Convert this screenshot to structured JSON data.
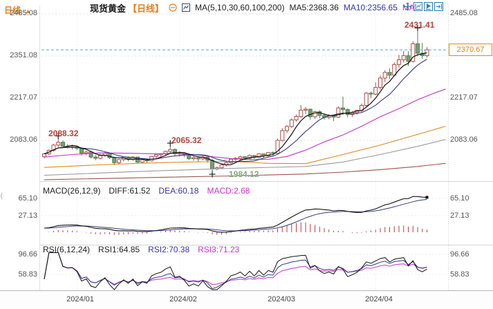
{
  "header": {
    "instrument": "现货黄金",
    "period": "【日线】",
    "ma_settings": "MA(5,10,30,60,100,200)",
    "ma5": "MA5:2368.36",
    "ma10": "MA10:2356.65",
    "ma_more": "MA"
  },
  "toolbar": {
    "icons": [
      "move-icon",
      "axis-scale-icon",
      "autoplay-icon",
      "pan-right-icon"
    ]
  },
  "price_tag": "2370.67",
  "annotations": {
    "high1": "2088.32",
    "high2": "2065.32",
    "low1": "1984.12",
    "high3": "2431.41"
  },
  "macd_panel": {
    "title": "MACD(26,12,9)",
    "diff": "DIFF:61.52",
    "dea": "DEA:60.18",
    "macd": "MACD:2.68"
  },
  "rsi_panel": {
    "title": "RSI(6,12,24)",
    "rsi1": "RSI1:64.85",
    "rsi2": "RSI2:70.38",
    "rsi3": "RSI3:71.23"
  },
  "bottom_bar": {
    "period": "日线",
    "arrow": "▲"
  },
  "icons": {
    "pane_handle": "⟨"
  },
  "axes": {
    "main_left": [
      "2485.08",
      "2351.08",
      "2217.07",
      "2083.06"
    ],
    "main_right": [
      "2485.08",
      "2217.07",
      "2083.06"
    ],
    "macd": [
      "65.10",
      "27.13"
    ],
    "rsi": [
      "96.66",
      "58.83"
    ],
    "dates": [
      "2024/01",
      "2024/02",
      "2024/03",
      "2024/04"
    ]
  },
  "colors": {
    "up": "#ab4e44",
    "down_fill": "#74a074",
    "down_stroke": "#537f51",
    "ma5": "#111111",
    "ma10": "#333a80",
    "ma30": "#c433c4",
    "ma60": "#d98a20",
    "ma100": "#9a9a9a",
    "ma200": "#9e544a",
    "hist": "#b04040",
    "diff": "#111111",
    "dea": "#333a80",
    "rsi1": "#111111",
    "rsi2": "#333a80",
    "rsi3": "#cc44cc",
    "price_line": "#55a7cc",
    "accent_orange": "#e0821a",
    "grid": "#e0e0e0",
    "axis_text": "#555555",
    "ann_high": "#b5433c",
    "ann_low": "#84a884",
    "icon_blue": "#2e7fb5"
  },
  "chart_data": {
    "type": "candlestick",
    "period": "daily",
    "ohlc_format": [
      "open",
      "high",
      "low",
      "close"
    ],
    "y_axis": {
      "main_gridline_prices": [
        2485.08,
        2351.08,
        2217.07,
        2083.06
      ],
      "macd_gridline_values": [
        65.1,
        27.13
      ],
      "rsi_gridline_values": [
        96.66,
        58.83
      ]
    },
    "x_axis": {
      "labels": [
        "2024/01",
        "2024/02",
        "2024/03",
        "2024/04"
      ],
      "month_start_indices": [
        7,
        29,
        50,
        71
      ]
    },
    "current_price": 2370.67,
    "indicator_values": {
      "ma5": 2368.36,
      "ma10": 2356.65,
      "diff": 61.52,
      "dea": 60.18,
      "macd": 2.68,
      "rsi1": 64.85,
      "rsi2": 70.38,
      "rsi3": 71.23
    },
    "extreme_annotations": [
      {
        "label": "2088.32",
        "index": 3,
        "side": "above"
      },
      {
        "label": "2065.32",
        "index": 27,
        "side": "above"
      },
      {
        "label": "1984.12",
        "index": 36,
        "side": "below"
      },
      {
        "label": "2431.41",
        "index": 80,
        "side": "above"
      }
    ],
    "candles": [
      [
        2031,
        2043,
        2026,
        2040
      ],
      [
        2040,
        2054,
        2036,
        2051
      ],
      [
        2051,
        2072,
        2048,
        2068
      ],
      [
        2068,
        2088.32,
        2062,
        2077
      ],
      [
        2077,
        2083,
        2058,
        2064
      ],
      [
        2064,
        2071,
        2057,
        2062
      ],
      [
        2062,
        2069,
        2054,
        2063
      ],
      [
        2063,
        2066,
        2052,
        2058
      ],
      [
        2058,
        2062,
        2034,
        2042
      ],
      [
        2042,
        2050,
        2036,
        2046
      ],
      [
        2046,
        2047,
        2026,
        2030
      ],
      [
        2030,
        2036,
        2020,
        2026
      ],
      [
        2026,
        2040,
        2022,
        2035
      ],
      [
        2035,
        2046,
        2030,
        2042
      ],
      [
        2042,
        2044,
        2024,
        2028
      ],
      [
        2028,
        2031,
        2004,
        2012
      ],
      [
        2012,
        2025,
        2008,
        2022
      ],
      [
        2022,
        2032,
        2016,
        2030
      ],
      [
        2030,
        2032,
        2016,
        2022
      ],
      [
        2022,
        2033,
        2018,
        2030
      ],
      [
        2030,
        2031,
        2010,
        2014
      ],
      [
        2014,
        2025,
        2010,
        2021
      ],
      [
        2021,
        2026,
        2012,
        2018
      ],
      [
        2018,
        2034,
        2016,
        2032
      ],
      [
        2032,
        2040,
        2026,
        2037
      ],
      [
        2037,
        2042,
        2030,
        2040
      ],
      [
        2040,
        2050,
        2036,
        2048
      ],
      [
        2048,
        2065.32,
        2044,
        2054
      ],
      [
        2054,
        2058,
        2034,
        2040
      ],
      [
        2040,
        2048,
        2032,
        2042
      ],
      [
        2042,
        2044,
        2030,
        2036
      ],
      [
        2036,
        2038,
        2020,
        2025
      ],
      [
        2025,
        2032,
        2018,
        2028
      ],
      [
        2028,
        2030,
        2016,
        2024
      ],
      [
        2024,
        2033,
        2020,
        2030
      ],
      [
        2030,
        2032,
        2012,
        2020
      ],
      [
        2020,
        2024,
        1984.12,
        1992
      ],
      [
        1992,
        2000,
        1988,
        1996
      ],
      [
        1996,
        2008,
        1992,
        2005
      ],
      [
        2005,
        2016,
        2000,
        2012
      ],
      [
        2012,
        2026,
        2008,
        2023
      ],
      [
        2023,
        2030,
        2018,
        2026
      ],
      [
        2026,
        2034,
        2021,
        2031
      ],
      [
        2031,
        2032,
        2020,
        2026
      ],
      [
        2026,
        2038,
        2022,
        2035
      ],
      [
        2035,
        2036,
        2024,
        2029
      ],
      [
        2029,
        2042,
        2026,
        2040
      ],
      [
        2040,
        2041,
        2028,
        2034
      ],
      [
        2034,
        2046,
        2030,
        2044
      ],
      [
        2044,
        2048,
        2036,
        2042
      ],
      [
        2042,
        2088,
        2040,
        2083
      ],
      [
        2083,
        2122,
        2079,
        2114
      ],
      [
        2114,
        2131,
        2106,
        2127
      ],
      [
        2127,
        2153,
        2122,
        2148
      ],
      [
        2148,
        2165,
        2143,
        2159
      ],
      [
        2159,
        2195,
        2154,
        2179
      ],
      [
        2179,
        2189,
        2167,
        2182
      ],
      [
        2182,
        2184,
        2148,
        2158
      ],
      [
        2158,
        2177,
        2152,
        2174
      ],
      [
        2174,
        2179,
        2153,
        2162
      ],
      [
        2162,
        2169,
        2149,
        2156
      ],
      [
        2156,
        2166,
        2150,
        2161
      ],
      [
        2161,
        2163,
        2144,
        2157
      ],
      [
        2157,
        2191,
        2154,
        2186
      ],
      [
        2186,
        2222,
        2164,
        2181
      ],
      [
        2181,
        2185,
        2156,
        2165
      ],
      [
        2165,
        2176,
        2158,
        2171
      ],
      [
        2171,
        2181,
        2164,
        2178
      ],
      [
        2178,
        2200,
        2172,
        2194
      ],
      [
        2194,
        2236,
        2190,
        2233
      ],
      [
        2233,
        2238,
        2218,
        2230
      ],
      [
        2230,
        2267,
        2226,
        2251
      ],
      [
        2251,
        2289,
        2244,
        2281
      ],
      [
        2281,
        2306,
        2268,
        2299
      ],
      [
        2299,
        2312,
        2278,
        2290
      ],
      [
        2290,
        2331,
        2286,
        2324
      ],
      [
        2324,
        2355,
        2314,
        2339
      ],
      [
        2339,
        2367,
        2330,
        2352
      ],
      [
        2352,
        2366,
        2319,
        2334
      ],
      [
        2334,
        2398,
        2330,
        2390
      ],
      [
        2390,
        2431.41,
        2350,
        2360
      ],
      [
        2360,
        2393,
        2342,
        2352
      ],
      [
        2352,
        2379,
        2346,
        2370.67
      ]
    ],
    "overlays": {
      "ma30": [
        [
          0,
          2030
        ],
        [
          6,
          2038
        ],
        [
          12,
          2043
        ],
        [
          18,
          2042
        ],
        [
          24,
          2040
        ],
        [
          28,
          2042
        ],
        [
          32,
          2038
        ],
        [
          36,
          2031
        ],
        [
          40,
          2025
        ],
        [
          44,
          2022
        ],
        [
          48,
          2023
        ],
        [
          52,
          2032
        ],
        [
          56,
          2052
        ],
        [
          60,
          2078
        ],
        [
          64,
          2100
        ],
        [
          68,
          2128
        ],
        [
          72,
          2158
        ],
        [
          76,
          2184
        ],
        [
          80,
          2212
        ],
        [
          83,
          2230
        ],
        [
          86,
          2246
        ]
      ],
      "ma60": [
        [
          0,
          1997
        ],
        [
          10,
          2004
        ],
        [
          20,
          2010
        ],
        [
          30,
          2014
        ],
        [
          40,
          2016
        ],
        [
          48,
          2010
        ],
        [
          56,
          2009
        ],
        [
          64,
          2038
        ],
        [
          72,
          2068
        ],
        [
          80,
          2102
        ],
        [
          86,
          2128
        ]
      ],
      "ma100": [
        [
          0,
          1972
        ],
        [
          20,
          1984
        ],
        [
          40,
          1994
        ],
        [
          56,
          2000
        ],
        [
          64,
          2014
        ],
        [
          72,
          2038
        ],
        [
          80,
          2064
        ],
        [
          86,
          2086
        ]
      ],
      "ma200": [
        [
          0,
          1958
        ],
        [
          20,
          1964
        ],
        [
          40,
          1970
        ],
        [
          56,
          1976
        ],
        [
          64,
          1982
        ],
        [
          72,
          1990
        ],
        [
          80,
          2000
        ],
        [
          86,
          2010
        ]
      ]
    }
  }
}
